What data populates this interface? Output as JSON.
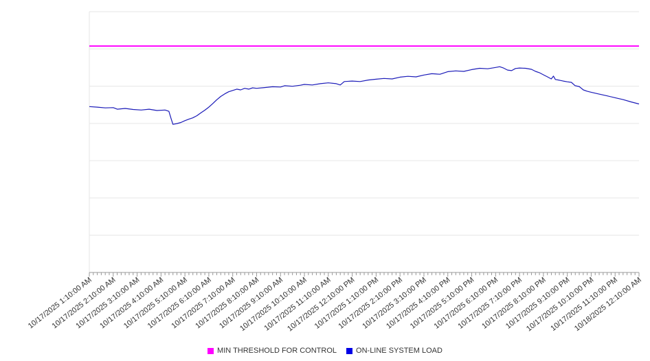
{
  "chart": {
    "background": "#ffffff",
    "grid_color": "#e6e6e6",
    "axis_color": "#999999",
    "label_color": "#333333"
  },
  "chart_data": {
    "type": "line",
    "title": "",
    "xlabel": "",
    "ylabel": "",
    "ylim": [
      0,
      100
    ],
    "x_span_hours": 23,
    "grid": "horizontal",
    "legend_position": "bottom",
    "x_tick_labels": [
      "10/17/2025 1:10:00 AM",
      "10/17/2025 2:10:00 AM",
      "10/17/2025 3:10:00 AM",
      "10/17/2025 4:10:00 AM",
      "10/17/2025 5:10:00 AM",
      "10/17/2025 6:10:00 AM",
      "10/17/2025 7:10:00 AM",
      "10/17/2025 8:10:00 AM",
      "10/17/2025 9:10:00 AM",
      "10/17/2025 10:10:00 AM",
      "10/17/2025 11:10:00 AM",
      "10/17/2025 12:10:00 PM",
      "10/17/2025 1:10:00 PM",
      "10/17/2025 2:10:00 PM",
      "10/17/2025 3:10:00 PM",
      "10/17/2025 4:10:00 PM",
      "10/17/2025 5:10:00 PM",
      "10/17/2025 6:10:00 PM",
      "10/17/2025 7:10:00 PM",
      "10/17/2025 8:10:00 PM",
      "10/17/2025 9:10:00 PM",
      "10/17/2025 10:10:00 PM",
      "10/17/2025 11:10:00 PM",
      "10/18/2025 12:10:00 AM"
    ],
    "minor_ticks_per_hour": 6,
    "series": [
      {
        "name": "MIN THRESHOLD FOR CONTROL",
        "color": "#ff00ff",
        "style": "threshold",
        "value": 86.8
      },
      {
        "name": "ON-LINE SYSTEM LOAD",
        "color": "#1a1ab8",
        "style": "line",
        "points": [
          [
            0,
            63.6
          ],
          [
            0.33,
            63.4
          ],
          [
            0.67,
            63.1
          ],
          [
            1,
            63.2
          ],
          [
            1.17,
            62.6
          ],
          [
            1.5,
            62.9
          ],
          [
            1.83,
            62.5
          ],
          [
            2.17,
            62.3
          ],
          [
            2.5,
            62.6
          ],
          [
            2.83,
            62.1
          ],
          [
            3.17,
            62.3
          ],
          [
            3.33,
            61.8
          ],
          [
            3.42,
            59.0
          ],
          [
            3.5,
            56.8
          ],
          [
            3.67,
            57.1
          ],
          [
            3.83,
            57.5
          ],
          [
            4,
            58.2
          ],
          [
            4.17,
            58.8
          ],
          [
            4.33,
            59.3
          ],
          [
            4.5,
            60.1
          ],
          [
            4.67,
            61.2
          ],
          [
            4.83,
            62.2
          ],
          [
            5,
            63.4
          ],
          [
            5.17,
            64.8
          ],
          [
            5.33,
            66.2
          ],
          [
            5.5,
            67.5
          ],
          [
            5.67,
            68.5
          ],
          [
            5.83,
            69.3
          ],
          [
            6,
            69.8
          ],
          [
            6.17,
            70.3
          ],
          [
            6.33,
            70.0
          ],
          [
            6.5,
            70.6
          ],
          [
            6.67,
            70.3
          ],
          [
            6.83,
            70.8
          ],
          [
            7,
            70.6
          ],
          [
            7.33,
            70.9
          ],
          [
            7.67,
            71.2
          ],
          [
            8,
            71.1
          ],
          [
            8.17,
            71.6
          ],
          [
            8.5,
            71.4
          ],
          [
            8.83,
            71.8
          ],
          [
            9,
            72.1
          ],
          [
            9.33,
            71.9
          ],
          [
            9.67,
            72.4
          ],
          [
            10,
            72.7
          ],
          [
            10.33,
            72.4
          ],
          [
            10.5,
            71.9
          ],
          [
            10.67,
            73.2
          ],
          [
            11,
            73.4
          ],
          [
            11.33,
            73.2
          ],
          [
            11.67,
            73.8
          ],
          [
            12,
            74.1
          ],
          [
            12.33,
            74.4
          ],
          [
            12.67,
            74.2
          ],
          [
            13,
            74.9
          ],
          [
            13.33,
            75.2
          ],
          [
            13.67,
            75.0
          ],
          [
            14,
            75.7
          ],
          [
            14.33,
            76.2
          ],
          [
            14.67,
            76.0
          ],
          [
            15,
            77.0
          ],
          [
            15.33,
            77.3
          ],
          [
            15.67,
            77.1
          ],
          [
            16,
            77.8
          ],
          [
            16.33,
            78.3
          ],
          [
            16.67,
            78.1
          ],
          [
            17,
            78.6
          ],
          [
            17.17,
            78.9
          ],
          [
            17.33,
            78.4
          ],
          [
            17.5,
            77.6
          ],
          [
            17.67,
            77.4
          ],
          [
            17.83,
            78.2
          ],
          [
            18,
            78.4
          ],
          [
            18.25,
            78.3
          ],
          [
            18.5,
            77.9
          ],
          [
            18.67,
            77.1
          ],
          [
            18.83,
            76.6
          ],
          [
            19,
            75.8
          ],
          [
            19.17,
            75.0
          ],
          [
            19.33,
            74.2
          ],
          [
            19.42,
            75.3
          ],
          [
            19.5,
            74.0
          ],
          [
            19.67,
            73.7
          ],
          [
            19.83,
            73.4
          ],
          [
            20,
            73.1
          ],
          [
            20.17,
            72.9
          ],
          [
            20.33,
            71.6
          ],
          [
            20.5,
            71.3
          ],
          [
            20.67,
            70.0
          ],
          [
            20.83,
            69.5
          ],
          [
            21,
            69.1
          ],
          [
            21.33,
            68.4
          ],
          [
            21.67,
            67.7
          ],
          [
            22,
            67.0
          ],
          [
            22.33,
            66.3
          ],
          [
            22.67,
            65.4
          ],
          [
            23,
            64.6
          ]
        ]
      }
    ]
  },
  "legend": {
    "items": [
      {
        "label": "MIN THRESHOLD FOR CONTROL",
        "color": "#ff00ff"
      },
      {
        "label": "ON-LINE SYSTEM LOAD",
        "color": "#0000e6"
      }
    ]
  }
}
